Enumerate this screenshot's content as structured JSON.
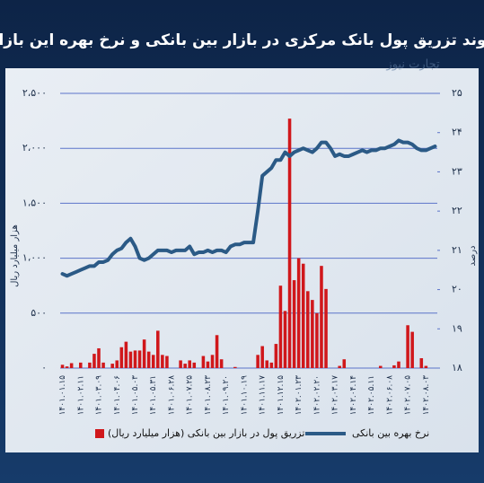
{
  "chart_data": {
    "type": "bar",
    "title": "روند تزریق پول بانک مرکزی در بازار بین بانکی و نرخ بهره این بازار",
    "watermark": "تجارت نیوز",
    "ylabel": "هزار میلیارد ریال",
    "y2label": "درصد",
    "categories": [
      "۱۴۰۱.۰۱.۱۵",
      null,
      null,
      null,
      "۱۴۰۱.۰۲.۱۱",
      null,
      null,
      null,
      "۱۴۰۱.۰۳.۰۹",
      null,
      null,
      null,
      "۱۴۰۱.۰۴.۰۶",
      null,
      null,
      null,
      "۱۴۰۱.۰۵.۰۳",
      null,
      null,
      null,
      "۱۴۰۱.۰۵.۳۱",
      null,
      null,
      null,
      "۱۴۰۱.۰۶.۲۸",
      null,
      null,
      null,
      "۱۴۰۱.۰۷.۲۵",
      null,
      null,
      null,
      "۱۴۰۱.۰۸.۲۳",
      null,
      null,
      null,
      "۱۴۰۱.۰۹.۲۰",
      null,
      null,
      null,
      "۱۴۰۱.۱۰.۱۹",
      null,
      null,
      null,
      "۱۴۰۱.۱۱.۱۷",
      null,
      null,
      null,
      "۱۴۰۱.۱۲.۱۵",
      null,
      null,
      null,
      "۱۴۰۲.۰۱.۲۳",
      null,
      null,
      null,
      "۱۴۰۲.۰۲.۲۰",
      null,
      null,
      null,
      "۱۴۰۲.۰۳.۱۷",
      null,
      null,
      null,
      "۱۴۰۲.۰۴.۱۴",
      null,
      null,
      null,
      "۱۴۰۲.۰۵.۱۱",
      null,
      null,
      null,
      "۱۴۰۲.۰۶.۰۸",
      null,
      null,
      null,
      "۱۴۰۲.۰۷.۰۵",
      null,
      null,
      null,
      "۱۴۰۲.۰۸.۰۳",
      null,
      null
    ],
    "series": [
      {
        "name": "تزریق پول در بازار بین بانکی (هزار میلیارد ریال)",
        "color": "#d0171b",
        "values": [
          30,
          15,
          45,
          0,
          50,
          0,
          50,
          130,
          180,
          50,
          0,
          40,
          70,
          190,
          240,
          150,
          160,
          160,
          260,
          150,
          120,
          340,
          120,
          110,
          0,
          0,
          70,
          40,
          70,
          50,
          0,
          110,
          60,
          120,
          300,
          80,
          0,
          0,
          10,
          0,
          0,
          0,
          0,
          120,
          200,
          70,
          50,
          220,
          750,
          520,
          2270,
          800,
          1000,
          950,
          700,
          620,
          500,
          930,
          720,
          0,
          0,
          20,
          80,
          0,
          0,
          0,
          0,
          0,
          0,
          0,
          20,
          0,
          0,
          25,
          60,
          0,
          390,
          330,
          0,
          90,
          20,
          0,
          0
        ]
      },
      {
        "name": "نرخ بهره بین بانکی",
        "color": "#2b5a86",
        "type": "line",
        "axis": "y2",
        "values": [
          20.4,
          20.35,
          20.4,
          20.45,
          20.5,
          20.55,
          20.6,
          20.6,
          20.7,
          20.7,
          20.75,
          20.9,
          21.0,
          21.05,
          21.2,
          21.3,
          21.1,
          20.8,
          20.75,
          20.8,
          20.9,
          21.0,
          21.0,
          21.0,
          20.95,
          21.0,
          21.0,
          21.0,
          21.1,
          20.9,
          20.95,
          20.95,
          21.0,
          20.95,
          21.0,
          21.0,
          20.95,
          21.1,
          21.15,
          21.15,
          21.2,
          21.2,
          21.2,
          22.0,
          22.9,
          23.0,
          23.1,
          23.3,
          23.3,
          23.5,
          23.4,
          23.5,
          23.55,
          23.6,
          23.55,
          23.5,
          23.6,
          23.75,
          23.75,
          23.6,
          23.4,
          23.45,
          23.4,
          23.4,
          23.45,
          23.5,
          23.55,
          23.5,
          23.55,
          23.55,
          23.6,
          23.6,
          23.65,
          23.7,
          23.8,
          23.75,
          23.75,
          23.7,
          23.6,
          23.55,
          23.55,
          23.6,
          23.65
        ]
      }
    ],
    "ylim": [
      0,
      2500
    ],
    "yticks": [
      {
        "value": 0,
        "label": "۰"
      },
      {
        "value": 500,
        "label": "۵۰۰"
      },
      {
        "value": 1000,
        "label": "۱،۰۰۰"
      },
      {
        "value": 1500,
        "label": "۱،۵۰۰"
      },
      {
        "value": 2000,
        "label": "۲،۰۰۰"
      },
      {
        "value": 2500,
        "label": "۲،۵۰۰"
      }
    ],
    "y2lim": [
      18,
      25
    ],
    "y2ticks": [
      {
        "value": 18,
        "label": "۱۸"
      },
      {
        "value": 19,
        "label": "۱۹"
      },
      {
        "value": 20,
        "label": "۲۰"
      },
      {
        "value": 21,
        "label": "۲۱"
      },
      {
        "value": 22,
        "label": "۲۲"
      },
      {
        "value": 23,
        "label": "۲۳"
      },
      {
        "value": 24,
        "label": "۲۴"
      },
      {
        "value": 25,
        "label": "۲۵"
      }
    ],
    "grid": true
  }
}
